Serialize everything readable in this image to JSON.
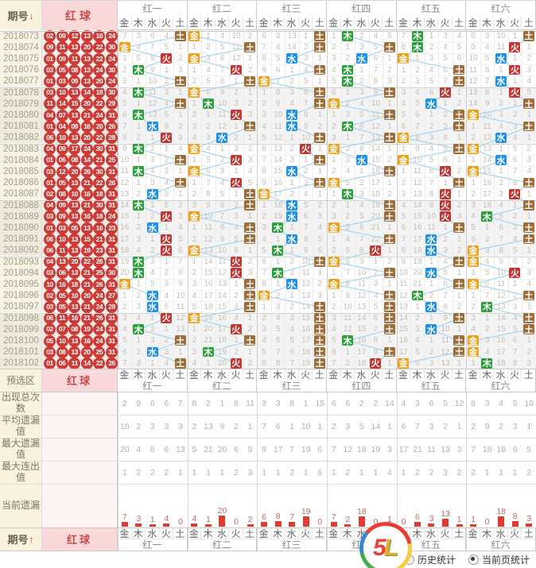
{
  "labels": {
    "period": "期号",
    "red": "红球",
    "preselect": "预选区",
    "arrow_down": "↓",
    "arrow_up": "↑"
  },
  "legend": {
    "history": "历史统计",
    "current": "当前页统计",
    "selected": "当前页统计"
  },
  "logo": {
    "char1": "5",
    "char2": "L"
  },
  "colors": {
    "金": "#f0a018",
    "木": "#2f9e3c",
    "水": "#1e90e8",
    "火": "#c23732",
    "土": "#9c6d38",
    "line": "#a8d4ee",
    "bar": "#e23a2e",
    "ball": "#cc3b36"
  },
  "chart_data": {
    "type": "table",
    "groups": [
      "红一",
      "红二",
      "红三",
      "红四",
      "红五",
      "红六"
    ],
    "elements": [
      "金",
      "木",
      "水",
      "火",
      "土"
    ],
    "periods": [
      "2018073",
      "2018074",
      "2018075",
      "2018076",
      "2018077",
      "2018078",
      "2018079",
      "2018080",
      "2018081",
      "2018082",
      "2018083",
      "2018084",
      "2018085",
      "2018086",
      "2018087",
      "2018088",
      "2018089",
      "2018090",
      "2018091",
      "2018092",
      "2018093",
      "2018094",
      "2018095",
      "2018096",
      "2018097",
      "2018098",
      "2018099",
      "2018100",
      "2018101",
      "2018102"
    ],
    "red_balls": [
      [
        "02",
        "09",
        "12",
        "13",
        "16",
        "24"
      ],
      [
        "09",
        "11",
        "13",
        "20",
        "22",
        "30"
      ],
      [
        "01",
        "09",
        "11",
        "13",
        "22",
        "24"
      ],
      [
        "03",
        "05",
        "08",
        "13",
        "24",
        "30"
      ],
      [
        "01",
        "03",
        "09",
        "13",
        "20",
        "24"
      ],
      [
        "03",
        "10",
        "13",
        "14",
        "18",
        "30"
      ],
      [
        "11",
        "14",
        "15",
        "20",
        "22",
        "29"
      ],
      [
        "04",
        "07",
        "13",
        "21",
        "24",
        "31"
      ],
      [
        "01",
        "04",
        "09",
        "16",
        "20",
        "26"
      ],
      [
        "06",
        "10",
        "13",
        "20",
        "22",
        "28"
      ],
      [
        "04",
        "09",
        "17",
        "24",
        "30",
        "31"
      ],
      [
        "01",
        "06",
        "08",
        "14",
        "21",
        "25"
      ],
      [
        "03",
        "12",
        "20",
        "26",
        "30",
        "31"
      ],
      [
        "01",
        "05",
        "13",
        "21",
        "22",
        "26"
      ],
      [
        "02",
        "08",
        "10",
        "16",
        "18",
        "31"
      ],
      [
        "04",
        "09",
        "13",
        "21",
        "30",
        "31"
      ],
      [
        "03",
        "09",
        "13",
        "16",
        "18",
        "24"
      ],
      [
        "01",
        "03",
        "05",
        "13",
        "16",
        "23"
      ],
      [
        "06",
        "10",
        "13",
        "15",
        "21",
        "31"
      ],
      [
        "06",
        "11",
        "13",
        "19",
        "23",
        "31"
      ],
      [
        "04",
        "13",
        "20",
        "22",
        "26",
        "31"
      ],
      [
        "03",
        "06",
        "13",
        "21",
        "25",
        "30"
      ],
      [
        "10",
        "16",
        "18",
        "21",
        "26",
        "31"
      ],
      [
        "02",
        "05",
        "10",
        "20",
        "24",
        "27"
      ],
      [
        "03",
        "05",
        "13",
        "21",
        "24",
        "28"
      ],
      [
        "06",
        "11",
        "16",
        "21",
        "26",
        "31"
      ],
      [
        "02",
        "07",
        "08",
        "19",
        "24",
        "31"
      ],
      [
        "05",
        "10",
        "13",
        "16",
        "24",
        "31"
      ],
      [
        "03",
        "08",
        "13",
        "20",
        "25",
        "31"
      ],
      [
        "01",
        "06",
        "11",
        "14",
        "22",
        "26"
      ]
    ],
    "row1_omission": [
      [
        7,
        3,
        6,
        4,
        0
      ],
      [
        0,
        1,
        4,
        10,
        2
      ],
      [
        6,
        3,
        13,
        1,
        0
      ],
      [
        1,
        0,
        2,
        4,
        5
      ],
      [
        7,
        0,
        1,
        3,
        4
      ],
      [
        8,
        3,
        10,
        1,
        0
      ]
    ],
    "hits": [
      [
        4,
        0,
        3,
        1,
        4,
        1,
        4,
        1,
        2,
        3,
        1,
        4,
        1,
        4,
        2,
        1,
        3,
        2,
        3,
        3,
        1,
        1,
        0,
        2,
        2,
        3,
        1,
        4,
        2,
        4
      ],
      [
        0,
        4,
        0,
        3,
        4,
        0,
        1,
        3,
        4,
        2,
        0,
        3,
        0,
        3,
        4,
        4,
        0,
        4,
        4,
        0,
        3,
        3,
        4,
        4,
        4,
        0,
        3,
        4,
        1,
        3
      ],
      [
        4,
        4,
        2,
        4,
        0,
        4,
        4,
        2,
        2,
        4,
        3,
        4,
        2,
        4,
        0,
        2,
        2,
        1,
        2,
        1,
        4,
        1,
        2,
        0,
        4,
        4,
        4,
        4,
        4,
        4
      ],
      [
        1,
        4,
        2,
        1,
        1,
        4,
        0,
        4,
        1,
        4,
        0,
        2,
        4,
        0,
        1,
        4,
        4,
        0,
        4,
        3,
        0,
        4,
        0,
        4,
        4,
        4,
        4,
        1,
        4,
        3
      ],
      [
        1,
        1,
        0,
        4,
        4,
        3,
        2,
        4,
        4,
        0,
        4,
        0,
        3,
        4,
        3,
        3,
        3,
        4,
        2,
        2,
        4,
        2,
        4,
        1,
        2,
        4,
        2,
        4,
        4,
        0
      ],
      [
        4,
        3,
        2,
        3,
        2,
        3,
        4,
        0,
        4,
        2,
        0,
        2,
        0,
        4,
        3,
        4,
        1,
        4,
        4,
        0,
        0,
        3,
        0,
        4,
        1,
        4,
        4,
        0,
        0,
        1
      ]
    ],
    "stats_rows": [
      {
        "label": "出现总次数",
        "values": [
          [
            2,
            9,
            6,
            6,
            7
          ],
          [
            8,
            2,
            1,
            8,
            11
          ],
          [
            3,
            3,
            8,
            1,
            15
          ],
          [
            6,
            6,
            2,
            2,
            14
          ],
          [
            4,
            3,
            6,
            5,
            12
          ],
          [
            8,
            3,
            4,
            5,
            10
          ]
        ]
      },
      {
        "label": "平均遗漏值",
        "values": [
          [
            10,
            2,
            3,
            3,
            3
          ],
          [
            2,
            13,
            9,
            2,
            1
          ],
          [
            7,
            6,
            1,
            10,
            1
          ],
          [
            2,
            3,
            5,
            14,
            1
          ],
          [
            6,
            7,
            3,
            2,
            1
          ],
          [
            2,
            9,
            2,
            3,
            1
          ]
        ]
      },
      {
        "label": "最大遗漏值",
        "values": [
          [
            20,
            4,
            8,
            6,
            13
          ],
          [
            5,
            21,
            20,
            6,
            5
          ],
          [
            9,
            17,
            7,
            19,
            6
          ],
          [
            7,
            12,
            18,
            19,
            3
          ],
          [
            17,
            21,
            11,
            13,
            3
          ],
          [
            7,
            16,
            18,
            8,
            5
          ]
        ]
      },
      {
        "label": "最大连出值",
        "values": [
          [
            1,
            2,
            2,
            2,
            1
          ],
          [
            1,
            1,
            1,
            2,
            3
          ],
          [
            1,
            1,
            2,
            1,
            6
          ],
          [
            1,
            2,
            1,
            1,
            4
          ],
          [
            1,
            2,
            2,
            3,
            2
          ],
          [
            2,
            1,
            1,
            1,
            2
          ]
        ]
      }
    ],
    "current_row": {
      "label": "当前遗漏",
      "values": [
        [
          7,
          3,
          1,
          4,
          0
        ],
        [
          4,
          1,
          20,
          0,
          2
        ],
        [
          6,
          8,
          7,
          19,
          0
        ],
        [
          7,
          2,
          18,
          0,
          1
        ],
        [
          0,
          6,
          3,
          13,
          1
        ],
        [
          1,
          0,
          18,
          8,
          3
        ]
      ]
    }
  }
}
